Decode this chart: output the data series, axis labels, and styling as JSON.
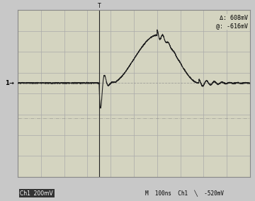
{
  "bg_color": "#c8c8c8",
  "screen_bg": "#d4d4c0",
  "grid_color": "#aaaaaa",
  "signal_color": "#222222",
  "title_annotation": "Δ: 608mV\n@: -616mV",
  "bottom_left_label": "Ch1  200mV",
  "bottom_right_label": "M  100ns  Ch1  ╲  -520mV",
  "trigger_label": "1→",
  "grid_major_x": 10,
  "grid_major_y": 8,
  "xlim": [
    0,
    10
  ],
  "ylim": [
    0,
    8
  ],
  "trigger_y": 4.5,
  "cursor_x": 3.5,
  "dashed_line_y": 2.8,
  "peak_x": 6.0,
  "peak_y": 6.8
}
